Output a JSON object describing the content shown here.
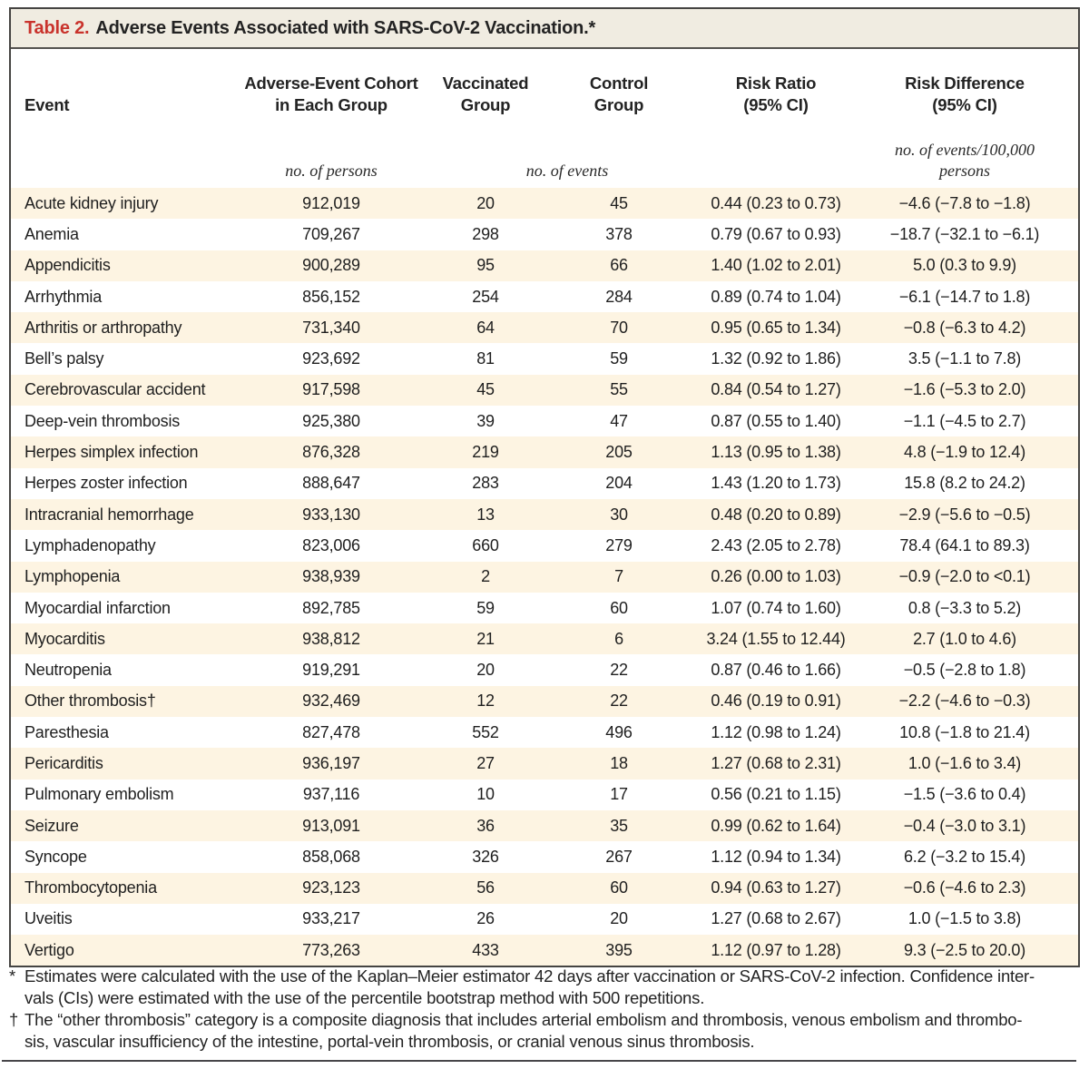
{
  "title": {
    "label": "Table 2.",
    "text": "Adverse Events Associated with SARS-CoV-2 Vaccination.*"
  },
  "headers": {
    "event": "Event",
    "cohort": [
      "Adverse-Event Cohort",
      "in Each Group"
    ],
    "vaccinated": [
      "Vaccinated",
      "Group"
    ],
    "control": [
      "Control",
      "Group"
    ],
    "risk_ratio": [
      "Risk Ratio",
      "(95% CI)"
    ],
    "risk_difference": [
      "Risk Difference",
      "(95% CI)"
    ]
  },
  "units": {
    "cohort": "no. of persons",
    "events": "no. of events",
    "risk_difference": [
      "no. of events/100,000",
      "persons"
    ]
  },
  "rows": [
    {
      "event": "Acute kidney injury",
      "cohort": "912,019",
      "vaccinated": "20",
      "control": "45",
      "risk_ratio": "0.44 (0.23 to 0.73)",
      "risk_difference": "−4.6 (−7.8 to −1.8)"
    },
    {
      "event": "Anemia",
      "cohort": "709,267",
      "vaccinated": "298",
      "control": "378",
      "risk_ratio": "0.79 (0.67 to 0.93)",
      "risk_difference": "−18.7 (−32.1 to −6.1)"
    },
    {
      "event": "Appendicitis",
      "cohort": "900,289",
      "vaccinated": "95",
      "control": "66",
      "risk_ratio": "1.40 (1.02 to 2.01)",
      "risk_difference": "5.0 (0.3 to 9.9)"
    },
    {
      "event": "Arrhythmia",
      "cohort": "856,152",
      "vaccinated": "254",
      "control": "284",
      "risk_ratio": "0.89 (0.74 to 1.04)",
      "risk_difference": "−6.1 (−14.7 to 1.8)"
    },
    {
      "event": "Arthritis or arthropathy",
      "cohort": "731,340",
      "vaccinated": "64",
      "control": "70",
      "risk_ratio": "0.95 (0.65 to 1.34)",
      "risk_difference": "−0.8 (−6.3 to 4.2)"
    },
    {
      "event": "Bell’s palsy",
      "cohort": "923,692",
      "vaccinated": "81",
      "control": "59",
      "risk_ratio": "1.32 (0.92 to 1.86)",
      "risk_difference": "3.5 (−1.1 to 7.8)"
    },
    {
      "event": "Cerebrovascular accident",
      "cohort": "917,598",
      "vaccinated": "45",
      "control": "55",
      "risk_ratio": "0.84 (0.54 to 1.27)",
      "risk_difference": "−1.6 (−5.3 to 2.0)"
    },
    {
      "event": "Deep-vein thrombosis",
      "cohort": "925,380",
      "vaccinated": "39",
      "control": "47",
      "risk_ratio": "0.87 (0.55 to 1.40)",
      "risk_difference": "−1.1 (−4.5 to 2.7)"
    },
    {
      "event": "Herpes simplex infection",
      "cohort": "876,328",
      "vaccinated": "219",
      "control": "205",
      "risk_ratio": "1.13 (0.95 to 1.38)",
      "risk_difference": "4.8 (−1.9 to 12.4)"
    },
    {
      "event": "Herpes zoster infection",
      "cohort": "888,647",
      "vaccinated": "283",
      "control": "204",
      "risk_ratio": "1.43 (1.20 to 1.73)",
      "risk_difference": "15.8 (8.2 to 24.2)"
    },
    {
      "event": "Intracranial hemorrhage",
      "cohort": "933,130",
      "vaccinated": "13",
      "control": "30",
      "risk_ratio": "0.48 (0.20 to 0.89)",
      "risk_difference": "−2.9 (−5.6 to −0.5)"
    },
    {
      "event": "Lymphadenopathy",
      "cohort": "823,006",
      "vaccinated": "660",
      "control": "279",
      "risk_ratio": "2.43 (2.05 to 2.78)",
      "risk_difference": "78.4 (64.1 to 89.3)"
    },
    {
      "event": "Lymphopenia",
      "cohort": "938,939",
      "vaccinated": "2",
      "control": "7",
      "risk_ratio": "0.26 (0.00 to 1.03)",
      "risk_difference": "−0.9 (−2.0 to <0.1)"
    },
    {
      "event": "Myocardial infarction",
      "cohort": "892,785",
      "vaccinated": "59",
      "control": "60",
      "risk_ratio": "1.07 (0.74 to 1.60)",
      "risk_difference": "0.8 (−3.3 to 5.2)"
    },
    {
      "event": "Myocarditis",
      "cohort": "938,812",
      "vaccinated": "21",
      "control": "6",
      "risk_ratio": "3.24 (1.55 to 12.44)",
      "risk_difference": "2.7 (1.0 to 4.6)"
    },
    {
      "event": "Neutropenia",
      "cohort": "919,291",
      "vaccinated": "20",
      "control": "22",
      "risk_ratio": "0.87 (0.46 to 1.66)",
      "risk_difference": "−0.5 (−2.8 to 1.8)"
    },
    {
      "event": "Other thrombosis†",
      "cohort": "932,469",
      "vaccinated": "12",
      "control": "22",
      "risk_ratio": "0.46 (0.19 to 0.91)",
      "risk_difference": "−2.2 (−4.6 to −0.3)"
    },
    {
      "event": "Paresthesia",
      "cohort": "827,478",
      "vaccinated": "552",
      "control": "496",
      "risk_ratio": "1.12 (0.98 to 1.24)",
      "risk_difference": "10.8 (−1.8 to 21.4)"
    },
    {
      "event": "Pericarditis",
      "cohort": "936,197",
      "vaccinated": "27",
      "control": "18",
      "risk_ratio": "1.27 (0.68 to 2.31)",
      "risk_difference": "1.0 (−1.6 to 3.4)"
    },
    {
      "event": "Pulmonary embolism",
      "cohort": "937,116",
      "vaccinated": "10",
      "control": "17",
      "risk_ratio": "0.56 (0.21 to 1.15)",
      "risk_difference": "−1.5 (−3.6 to 0.4)"
    },
    {
      "event": "Seizure",
      "cohort": "913,091",
      "vaccinated": "36",
      "control": "35",
      "risk_ratio": "0.99 (0.62 to 1.64)",
      "risk_difference": "−0.4 (−3.0 to 3.1)"
    },
    {
      "event": "Syncope",
      "cohort": "858,068",
      "vaccinated": "326",
      "control": "267",
      "risk_ratio": "1.12 (0.94 to 1.34)",
      "risk_difference": "6.2 (−3.2 to 15.4)"
    },
    {
      "event": "Thrombocytopenia",
      "cohort": "923,123",
      "vaccinated": "56",
      "control": "60",
      "risk_ratio": "0.94 (0.63 to 1.27)",
      "risk_difference": "−0.6 (−4.6 to 2.3)"
    },
    {
      "event": "Uveitis",
      "cohort": "933,217",
      "vaccinated": "26",
      "control": "20",
      "risk_ratio": "1.27 (0.68 to 2.67)",
      "risk_difference": "1.0 (−1.5 to 3.8)"
    },
    {
      "event": "Vertigo",
      "cohort": "773,263",
      "vaccinated": "433",
      "control": "395",
      "risk_ratio": "1.12 (0.97 to 1.28)",
      "risk_difference": "9.3 (−2.5 to 20.0)"
    }
  ],
  "footnotes": [
    {
      "marker": "*",
      "text": "Estimates were calculated with the use of the Kaplan–Meier estimator 42 days after vaccination or SARS-CoV-2 infection. Confidence intervals (CIs) were estimated with the use of the percentile bootstrap method with 500 repetitions.",
      "lines": [
        "Estimates were calculated with the use of the Kaplan–Meier estimator 42 days after vaccination or SARS-CoV-2 infection. Confidence inter-",
        "vals (CIs) were estimated with the use of the percentile bootstrap method with 500 repetitions."
      ]
    },
    {
      "marker": "†",
      "text": "The “other thrombosis” category is a composite diagnosis that includes arterial embolism and thrombosis, venous embolism and thrombosis, vascular insufficiency of the intestine, portal-vein thrombosis, or cranial venous sinus thrombosis.",
      "lines": [
        "The “other thrombosis” category is a composite diagnosis that includes arterial embolism and thrombosis, venous embolism and thrombo-",
        "sis, vascular insufficiency of the intestine, portal-vein thrombosis, or cranial venous sinus thrombosis."
      ]
    }
  ],
  "colors": {
    "accent_red": "#c9332c",
    "row_stripe": "#fdf4e2",
    "title_band": "#f0ece1",
    "border": "#454442",
    "text": "#1c1c1c"
  }
}
